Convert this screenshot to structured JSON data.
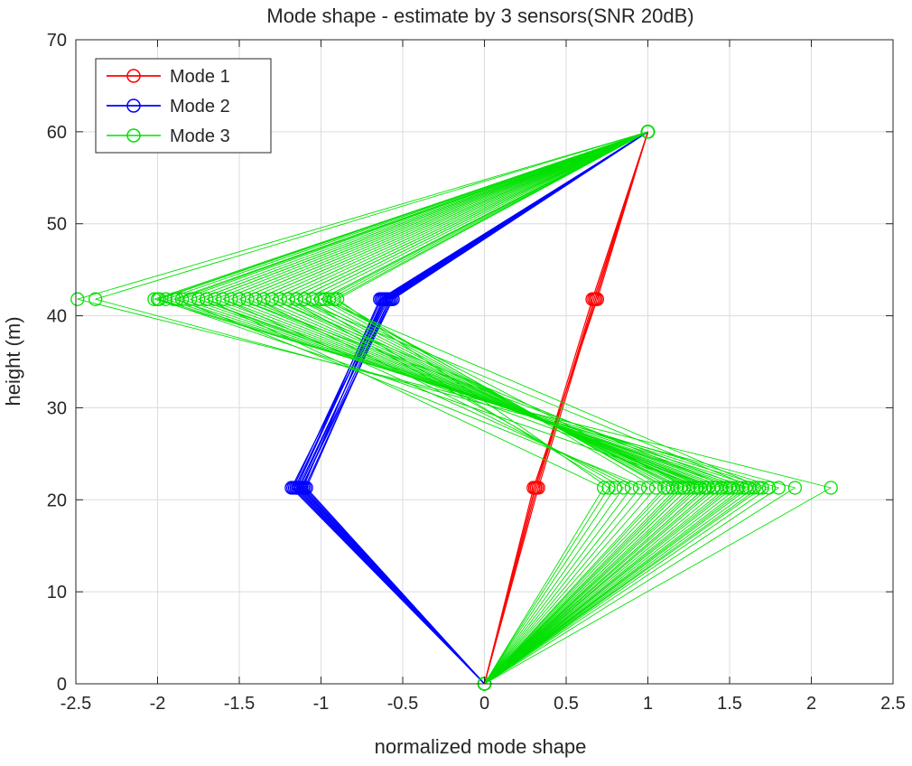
{
  "chart_data": {
    "type": "line",
    "title": "Mode shape - estimate by 3 sensors(SNR 20dB)",
    "xlabel": "normalized mode shape",
    "ylabel": "height (m)",
    "xlim": [
      -2.5,
      2.5
    ],
    "ylim": [
      0,
      70
    ],
    "xticks": [
      -2.5,
      -2,
      -1.5,
      -1,
      -0.5,
      0,
      0.5,
      1,
      1.5,
      2,
      2.5
    ],
    "yticks": [
      0,
      10,
      20,
      30,
      40,
      50,
      60,
      70
    ],
    "xtick_labels": [
      "-2.5",
      "-2",
      "-1.5",
      "-1",
      "-0.5",
      "0",
      "0.5",
      "1",
      "1.5",
      "2",
      "2.5"
    ],
    "ytick_labels": [
      "0",
      "10",
      "20",
      "30",
      "40",
      "50",
      "60",
      "70"
    ],
    "grid": true,
    "legend_position": "top-left",
    "heights": [
      0,
      21.3,
      41.8,
      60
    ],
    "series": [
      {
        "name": "Mode 1",
        "color": "#ff0000",
        "line_width": 1.2,
        "curves": [
          [
            0,
            0.31,
            0.68,
            1
          ],
          [
            0,
            0.32,
            0.67,
            1
          ],
          [
            0,
            0.3,
            0.69,
            1
          ],
          [
            0,
            0.33,
            0.68,
            1
          ],
          [
            0,
            0.31,
            0.66,
            1
          ]
        ]
      },
      {
        "name": "Mode 2",
        "color": "#0000ff",
        "line_width": 1.2,
        "curves": [
          [
            0,
            -1.15,
            -0.62,
            1
          ],
          [
            0,
            -1.13,
            -0.6,
            1
          ],
          [
            0,
            -1.12,
            -0.58,
            1
          ],
          [
            0,
            -1.17,
            -0.63,
            1
          ],
          [
            0,
            -1.1,
            -0.57,
            1
          ],
          [
            0,
            -1.16,
            -0.61,
            1
          ],
          [
            0,
            -1.14,
            -0.59,
            1
          ],
          [
            0,
            -1.11,
            -0.62,
            1
          ],
          [
            0,
            -1.18,
            -0.6,
            1
          ],
          [
            0,
            -1.12,
            -0.56,
            1
          ],
          [
            0,
            -1.15,
            -0.64,
            1
          ],
          [
            0,
            -1.09,
            -0.58,
            1
          ]
        ]
      },
      {
        "name": "Mode 3",
        "color": "#00e000",
        "line_width": 0.9,
        "curves": [
          [
            0,
            2.12,
            -2.49,
            1
          ],
          [
            0,
            1.9,
            -2.38,
            1
          ],
          [
            0,
            1.8,
            -2.02,
            1
          ],
          [
            0,
            1.74,
            -1.99,
            1
          ],
          [
            0,
            1.68,
            -1.95,
            1
          ],
          [
            0,
            1.62,
            -1.9,
            1
          ],
          [
            0,
            1.58,
            -1.85,
            1
          ],
          [
            0,
            1.55,
            -1.8,
            1
          ],
          [
            0,
            1.52,
            -1.75,
            1
          ],
          [
            0,
            1.48,
            -1.7,
            1
          ],
          [
            0,
            1.45,
            -1.65,
            1
          ],
          [
            0,
            1.42,
            -1.6,
            1
          ],
          [
            0,
            1.4,
            -1.55,
            1
          ],
          [
            0,
            1.37,
            -1.5,
            1
          ],
          [
            0,
            1.35,
            -1.45,
            1
          ],
          [
            0,
            1.32,
            -1.4,
            1
          ],
          [
            0,
            1.3,
            -1.35,
            1
          ],
          [
            0,
            1.28,
            -1.3,
            1
          ],
          [
            0,
            1.25,
            -1.25,
            1
          ],
          [
            0,
            1.22,
            -1.2,
            1
          ],
          [
            0,
            1.2,
            -1.15,
            1
          ],
          [
            0,
            1.18,
            -1.1,
            1
          ],
          [
            0,
            1.15,
            -1.05,
            1
          ],
          [
            0,
            1.12,
            -1.0,
            1
          ],
          [
            0,
            1.1,
            -0.95,
            1
          ],
          [
            0,
            1.05,
            -0.92,
            1
          ],
          [
            0,
            1.0,
            -1.88,
            1
          ],
          [
            0,
            0.95,
            -1.6,
            1
          ],
          [
            0,
            0.9,
            -1.4,
            1
          ],
          [
            0,
            0.85,
            -1.2,
            1
          ],
          [
            0,
            0.8,
            -1.1,
            1
          ],
          [
            0,
            0.76,
            -0.9,
            1
          ],
          [
            0,
            0.73,
            -1.7,
            1
          ],
          [
            0,
            1.6,
            -1.5,
            1
          ],
          [
            0,
            1.5,
            -1.3,
            1
          ],
          [
            0,
            1.65,
            -1.15,
            1
          ],
          [
            0,
            1.7,
            -1.0,
            1
          ],
          [
            0,
            1.4,
            -1.75,
            1
          ],
          [
            0,
            1.35,
            -2.0,
            1
          ],
          [
            0,
            1.25,
            -0.98,
            1
          ]
        ]
      }
    ]
  }
}
